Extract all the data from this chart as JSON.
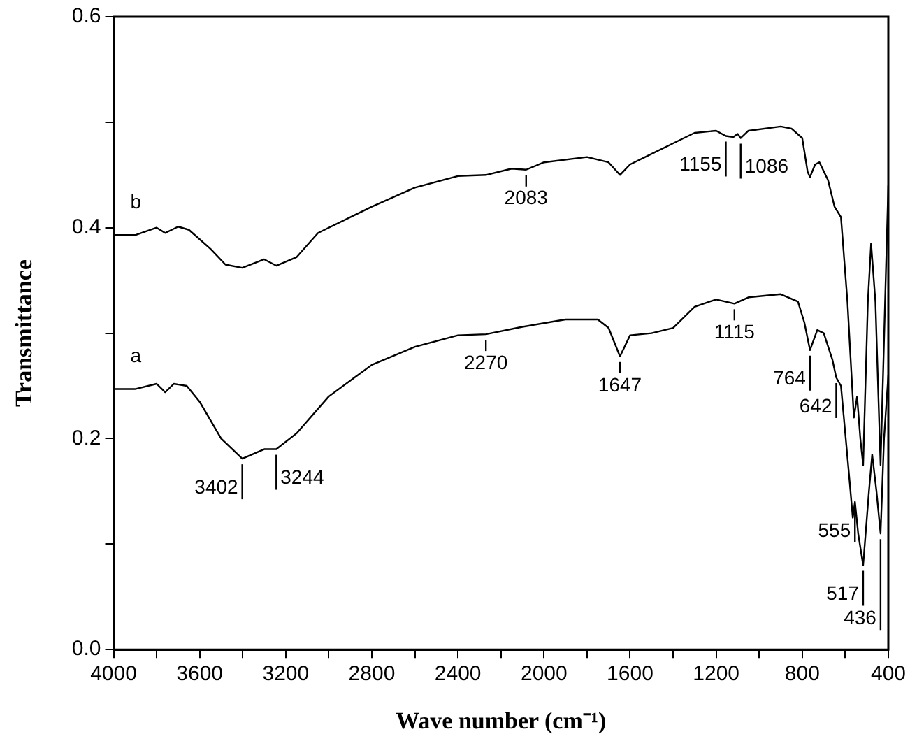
{
  "chart_data": {
    "type": "line",
    "xlabel": "Wave number (cm⁻¹)",
    "ylabel": "Transmittance",
    "xlim": [
      4000,
      400
    ],
    "ylim": [
      0,
      0.6
    ],
    "xticks": [
      4000,
      {
        "value": 3800,
        "label": null
      },
      3600,
      {
        "value": 3400,
        "label": null
      },
      3200,
      {
        "value": 3000,
        "label": null
      },
      2800,
      {
        "value": 2600,
        "label": null
      },
      2400,
      {
        "value": 2200,
        "label": null
      },
      2000,
      {
        "value": 1800,
        "label": null
      },
      1600,
      {
        "value": 1400,
        "label": null
      },
      1200,
      {
        "value": 1000,
        "label": null
      },
      800,
      {
        "value": 600,
        "label": null
      },
      400
    ],
    "yticks": [
      {
        "value": 0,
        "label": "0.0"
      },
      {
        "value": 0.1,
        "label": null
      },
      0.2,
      {
        "value": 0.3,
        "label": null
      },
      0.4,
      {
        "value": 0.5,
        "label": null
      },
      0.6
    ],
    "grid": false,
    "legend": false,
    "marker": "none",
    "line_style": "solid",
    "series": [
      {
        "name": "a",
        "color": "#000000",
        "x": [
          4000,
          3900,
          3800,
          3760,
          3720,
          3660,
          3600,
          3500,
          3402,
          3300,
          3244,
          3150,
          3000,
          2800,
          2600,
          2400,
          2270,
          2100,
          1900,
          1750,
          1700,
          1647,
          1600,
          1500,
          1400,
          1300,
          1200,
          1115,
          1050,
          900,
          820,
          790,
          764,
          730,
          700,
          660,
          642,
          620,
          580,
          565,
          555,
          540,
          517,
          490,
          475,
          455,
          436,
          420,
          400
        ],
        "values": [
          0.247,
          0.247,
          0.252,
          0.244,
          0.252,
          0.25,
          0.235,
          0.2,
          0.181,
          0.19,
          0.19,
          0.205,
          0.24,
          0.27,
          0.287,
          0.298,
          0.299,
          0.306,
          0.313,
          0.313,
          0.305,
          0.278,
          0.298,
          0.3,
          0.305,
          0.325,
          0.332,
          0.328,
          0.334,
          0.337,
          0.33,
          0.31,
          0.284,
          0.303,
          0.3,
          0.275,
          0.258,
          0.25,
          0.16,
          0.125,
          0.14,
          0.11,
          0.08,
          0.15,
          0.185,
          0.15,
          0.11,
          0.2,
          0.26
        ]
      },
      {
        "name": "b",
        "color": "#000000",
        "x": [
          4000,
          3900,
          3800,
          3760,
          3700,
          3650,
          3550,
          3480,
          3402,
          3300,
          3244,
          3150,
          3050,
          2800,
          2600,
          2400,
          2270,
          2150,
          2083,
          2000,
          1800,
          1700,
          1647,
          1600,
          1500,
          1400,
          1300,
          1200,
          1155,
          1120,
          1100,
          1086,
          1050,
          900,
          850,
          800,
          775,
          764,
          740,
          720,
          680,
          650,
          620,
          590,
          560,
          545,
          530,
          517,
          495,
          480,
          460,
          436,
          415,
          400
        ],
        "values": [
          0.393,
          0.393,
          0.4,
          0.395,
          0.401,
          0.398,
          0.38,
          0.365,
          0.362,
          0.37,
          0.364,
          0.372,
          0.395,
          0.42,
          0.438,
          0.449,
          0.45,
          0.456,
          0.455,
          0.462,
          0.467,
          0.462,
          0.45,
          0.46,
          0.47,
          0.48,
          0.49,
          0.492,
          0.487,
          0.486,
          0.489,
          0.485,
          0.492,
          0.496,
          0.494,
          0.485,
          0.453,
          0.448,
          0.46,
          0.462,
          0.445,
          0.42,
          0.41,
          0.33,
          0.22,
          0.24,
          0.2,
          0.175,
          0.33,
          0.385,
          0.33,
          0.175,
          0.33,
          0.44
        ]
      }
    ],
    "annotations": [
      {
        "text": "3402",
        "x": 3402,
        "y": 0.181
      },
      {
        "text": "3244",
        "x": 3244,
        "y": 0.19
      },
      {
        "text": "2270",
        "x": 2270,
        "y": 0.299
      },
      {
        "text": "1647",
        "x": 1647,
        "y": 0.278
      },
      {
        "text": "1115",
        "x": 1115,
        "y": 0.328
      },
      {
        "text": "764",
        "x": 764,
        "y": 0.284
      },
      {
        "text": "642",
        "x": 642,
        "y": 0.258
      },
      {
        "text": "555",
        "x": 555,
        "y": 0.14
      },
      {
        "text": "517",
        "x": 517,
        "y": 0.08
      },
      {
        "text": "436",
        "x": 436,
        "y": 0.11
      },
      {
        "text": "2083",
        "x": 2083,
        "y": 0.455
      },
      {
        "text": "1155",
        "x": 1155,
        "y": 0.487
      },
      {
        "text": "1086",
        "x": 1086,
        "y": 0.485
      }
    ]
  }
}
